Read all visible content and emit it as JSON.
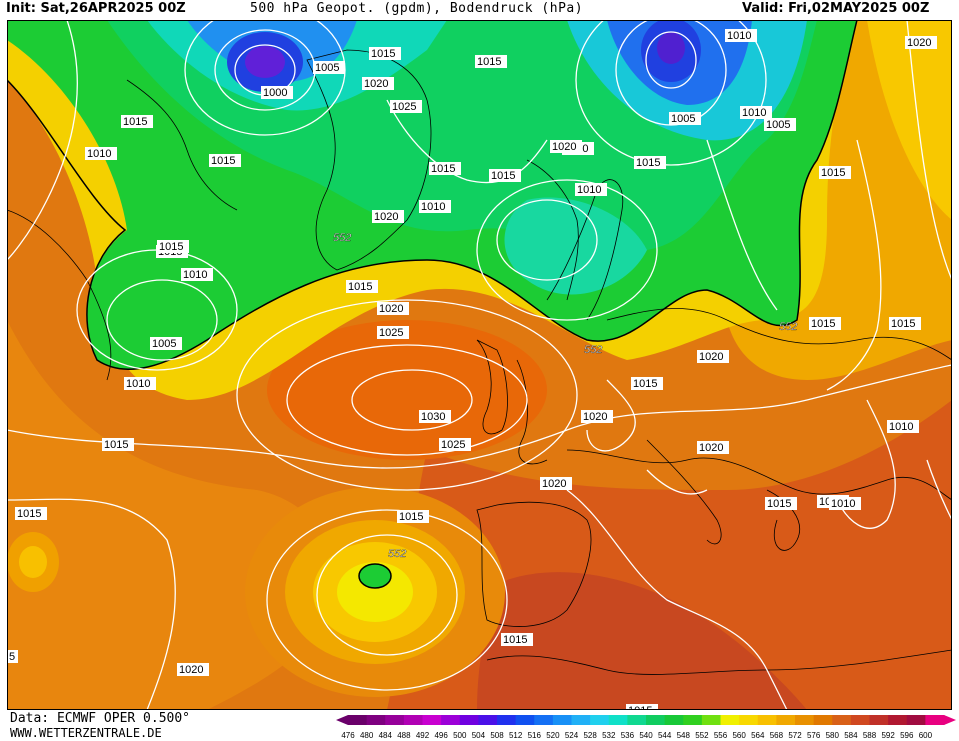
{
  "header": {
    "init": "Init: Sat,26APR2025 00Z",
    "title": "500 hPa Geopot. (gpdm), Bodendruck (hPa)",
    "valid": "Valid: Fri,02MAY2025 00Z"
  },
  "footer": {
    "data_source": "Data: ECMWF OPER 0.500°",
    "website": "WWW.WETTERZENTRALE.DE"
  },
  "legend": {
    "values": [
      "476",
      "480",
      "484",
      "488",
      "492",
      "496",
      "500",
      "504",
      "508",
      "512",
      "516",
      "520",
      "524",
      "528",
      "532",
      "536",
      "540",
      "544",
      "548",
      "552",
      "556",
      "560",
      "564",
      "568",
      "572",
      "576",
      "580",
      "584",
      "588",
      "592",
      "596",
      "600"
    ],
    "colors": [
      "#6a006a",
      "#7e0080",
      "#96009a",
      "#b000b4",
      "#c800d0",
      "#9c00d8",
      "#7000e0",
      "#4a10e8",
      "#2030ee",
      "#1050f0",
      "#1470f4",
      "#1890f6",
      "#20b0f6",
      "#20d0ee",
      "#10e0c8",
      "#10d890",
      "#10cc60",
      "#18c838",
      "#30d020",
      "#70e010",
      "#f0f000",
      "#f8d800",
      "#f8c000",
      "#f0a800",
      "#e89000",
      "#e07800",
      "#d86018",
      "#d04820",
      "#c03028",
      "#b01830",
      "#a00c40",
      "#e80080"
    ]
  },
  "pressure_labels": [
    {
      "text": "1000"
    },
    {
      "text": "1005"
    },
    {
      "text": "1015"
    },
    {
      "text": "1015"
    },
    {
      "text": "1015"
    },
    {
      "text": "1010"
    },
    {
      "text": "1020"
    },
    {
      "text": "1025"
    },
    {
      "text": "1015"
    },
    {
      "text": "1015"
    },
    {
      "text": "1015"
    },
    {
      "text": "1020"
    },
    {
      "text": "1010"
    },
    {
      "text": "1005"
    },
    {
      "text": "1015"
    },
    {
      "text": "1010"
    },
    {
      "text": "1005"
    },
    {
      "text": "1010"
    },
    {
      "text": "1015"
    },
    {
      "text": "1020"
    },
    {
      "text": "1015"
    },
    {
      "text": "1015"
    },
    {
      "text": "1010"
    },
    {
      "text": "1005"
    },
    {
      "text": "1015"
    },
    {
      "text": "1020"
    },
    {
      "text": "1025"
    },
    {
      "text": "1010"
    },
    {
      "text": "1030"
    },
    {
      "text": "1025"
    },
    {
      "text": "1015"
    },
    {
      "text": "1020"
    },
    {
      "text": "1015"
    },
    {
      "text": "1020"
    },
    {
      "text": "1020"
    },
    {
      "text": "1020"
    },
    {
      "text": "1015"
    },
    {
      "text": "1015"
    },
    {
      "text": "1010"
    },
    {
      "text": "1010"
    },
    {
      "text": "1015"
    },
    {
      "text": "1015"
    },
    {
      "text": "1020"
    },
    {
      "text": "1010"
    },
    {
      "text": "1015"
    },
    {
      "text": "1020"
    },
    {
      "text": "1015"
    },
    {
      "text": "1020"
    },
    {
      "text": "1010"
    },
    {
      "text": "1015"
    },
    {
      "text": "5"
    }
  ],
  "geopotential_labels": [
    {
      "text": "552"
    },
    {
      "text": "552"
    },
    {
      "text": "552"
    },
    {
      "text": "552"
    }
  ]
}
